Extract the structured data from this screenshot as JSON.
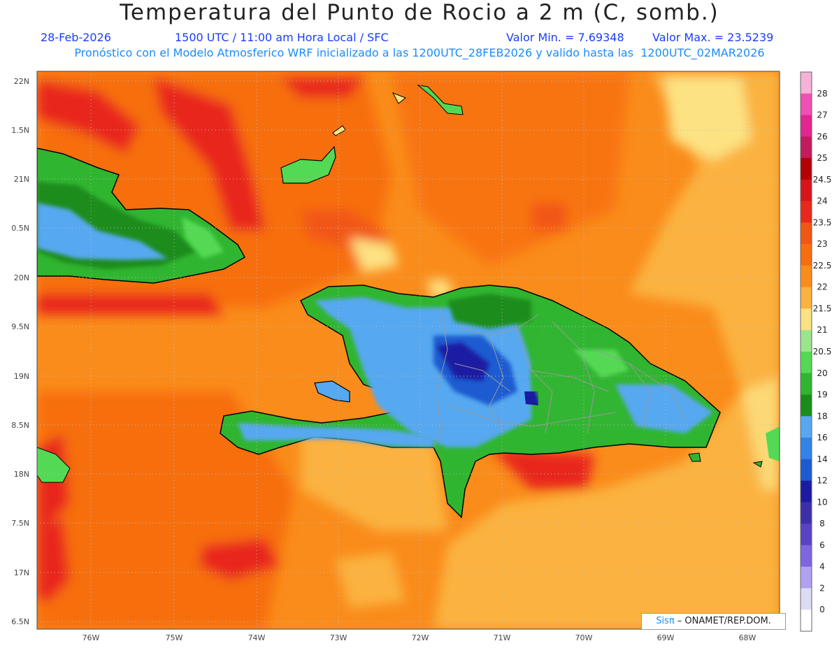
{
  "header": {
    "title": "Temperatura del Punto de Rocio a 2 m (C, somb.)",
    "date": "28-Feb-2026",
    "time": "1500 UTC / 11:00 am Hora Local / SFC",
    "min": "Valor Min. = 7.69348",
    "max": "Valor Max. = 23.5239",
    "model": "Pronóstico con el Modelo Atmosferico WRF inicializado a las 1200UTC_28FEB2026 y valido hasta las  1200UTC_02MAR2026"
  },
  "map": {
    "lat_labels": [
      "22N",
      "1.5N",
      "21N",
      "0.5N",
      "20N",
      "9.5N",
      "19N",
      "8.5N",
      "18N",
      "7.5N",
      "17N",
      "6.5N"
    ],
    "lon_labels": [
      "76W",
      "75W",
      "74W",
      "73W",
      "72W",
      "71W",
      "70W",
      "69W",
      "68W"
    ]
  },
  "colorbar": {
    "labels": [
      "28",
      "27",
      "26",
      "25",
      "24.5",
      "24",
      "23.5",
      "23",
      "22.5",
      "22",
      "21.5",
      "21",
      "20.5",
      "20",
      "19",
      "18",
      "16",
      "14",
      "12",
      "10",
      "8",
      "6",
      "4",
      "2",
      "0"
    ],
    "colors": [
      "#f7b2d8",
      "#f04fb4",
      "#e2258f",
      "#c41a5e",
      "#b30000",
      "#d7141c",
      "#e8281b",
      "#f25613",
      "#f76e10",
      "#fa8c1b",
      "#fbb240",
      "#fde283",
      "#9be68d",
      "#54d954",
      "#30b530",
      "#1a8c1a",
      "#56a8f0",
      "#3382e6",
      "#1f5bd0",
      "#1a1aa3",
      "#3d2fa8",
      "#5a42c4",
      "#7f66e0",
      "#b0a2f0",
      "#dcdcf7",
      "#ffffff"
    ]
  },
  "credit": {
    "sis": "Sisπ",
    "org": " – ONAMET/REP.DOM."
  }
}
